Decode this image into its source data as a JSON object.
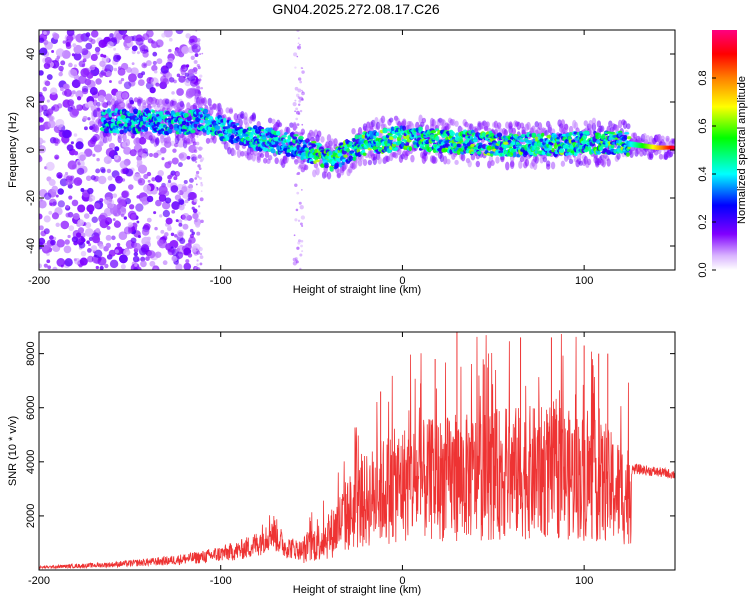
{
  "title": "GN04.2025.272.08.17.C26",
  "chart_data": [
    {
      "type": "heatmap",
      "name": "spectrogram",
      "xlabel": "Height of straight line (km)",
      "ylabel": "Frequency (Hz)",
      "xlim": [
        -200,
        150
      ],
      "ylim": [
        -50,
        50
      ],
      "xticks": [
        -200,
        -100,
        0,
        100
      ],
      "yticks": [
        -40,
        -20,
        0,
        20,
        40
      ],
      "xtick_labels": [
        "-200",
        "-100",
        "0",
        "100"
      ],
      "ytick_labels": [
        "-40",
        "-20",
        "0",
        "20",
        "40"
      ],
      "colorbar": {
        "label": "Normalized spectral amplitude",
        "range": [
          0,
          1
        ],
        "ticks": [
          0.0,
          0.2,
          0.4,
          0.6,
          0.8
        ],
        "tick_labels": [
          "0.0",
          "0.2",
          "0.4",
          "0.6",
          "0.8"
        ],
        "colors": [
          "#ffffff",
          "#d9b3ff",
          "#8000ff",
          "#0000ff",
          "#00ffff",
          "#00ff00",
          "#ffff00",
          "#ff8000",
          "#ff0000",
          "#ff0080"
        ]
      },
      "band_center": {
        "x": [
          -160,
          -140,
          -120,
          -110,
          -100,
          -80,
          -60,
          -45,
          -40,
          -20,
          0,
          20,
          40,
          60,
          80,
          100,
          120,
          140,
          150
        ],
        "y": [
          12,
          12,
          11,
          13,
          9,
          5,
          2,
          -2,
          -4,
          3,
          5,
          4,
          3,
          2,
          2,
          3,
          3,
          1,
          1
        ]
      },
      "noise_region_x": [
        -200,
        -115
      ]
    },
    {
      "type": "line",
      "name": "snr",
      "xlabel": "Height of straight line (km)",
      "ylabel": "SNR (10 * v/v)",
      "xlim": [
        -200,
        150
      ],
      "ylim": [
        0,
        8800
      ],
      "xticks": [
        -200,
        -100,
        0,
        100
      ],
      "yticks": [
        2000,
        4000,
        6000,
        8000
      ],
      "xtick_labels": [
        "-200",
        "-100",
        "0",
        "100"
      ],
      "ytick_labels": [
        "2000",
        "4000",
        "6000",
        "8000"
      ],
      "color": "#ee3333",
      "envelope": {
        "x": [
          -200,
          -160,
          -130,
          -110,
          -90,
          -80,
          -72,
          -65,
          -55,
          -40,
          -30,
          -20,
          -10,
          0,
          20,
          40,
          60,
          80,
          100,
          110,
          120,
          124,
          126,
          130,
          150
        ],
        "y": [
          120,
          250,
          420,
          600,
          900,
          1200,
          1900,
          1100,
          900,
          1600,
          2600,
          3200,
          3700,
          4000,
          4200,
          4300,
          4500,
          4500,
          4300,
          4000,
          3600,
          3500,
          3800,
          3800,
          3600
        ]
      },
      "spike_peaks": {
        "x": [
          -12,
          10,
          18,
          30,
          45,
          65,
          82,
          100,
          108,
          113
        ],
        "y": [
          6600,
          6900,
          7800,
          8800,
          7600,
          8600,
          8600,
          8300,
          8000,
          8000
        ]
      }
    }
  ]
}
